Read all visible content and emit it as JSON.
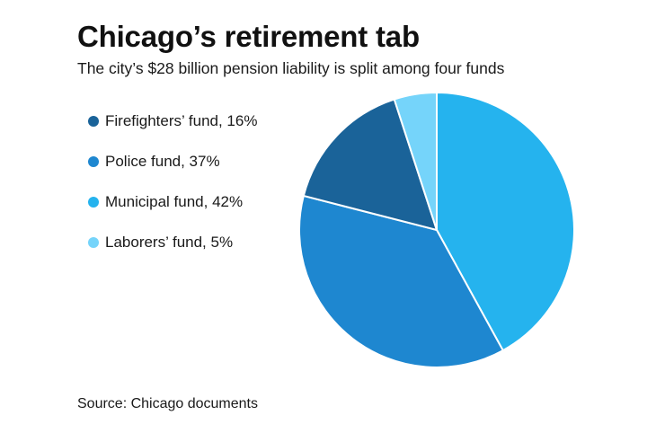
{
  "title": "Chicago’s retirement tab",
  "subtitle": "The city’s $28 billion pension liability is split among four funds",
  "source": "Source: Chicago documents",
  "legend": [
    {
      "label": "Firefighters’ fund, 16%",
      "color": "#1a6399"
    },
    {
      "label": "Police fund, 37%",
      "color": "#1e87d0"
    },
    {
      "label": "Municipal fund, 42%",
      "color": "#25b3ee"
    },
    {
      "label": "Laborers’ fund, 5%",
      "color": "#75d4fa"
    }
  ],
  "chart_data": {
    "type": "pie",
    "title": "Chicago’s retirement tab",
    "subtitle": "The city’s $28 billion pension liability is split among four funds",
    "legend_position": "left",
    "slices": [
      {
        "label": "Municipal fund",
        "value": 42,
        "color": "#25b3ee"
      },
      {
        "label": "Police fund",
        "value": 37,
        "color": "#1e87d0"
      },
      {
        "label": "Firefighters’ fund",
        "value": 16,
        "color": "#1a6399"
      },
      {
        "label": "Laborers’ fund",
        "value": 5,
        "color": "#75d4fa"
      }
    ]
  }
}
